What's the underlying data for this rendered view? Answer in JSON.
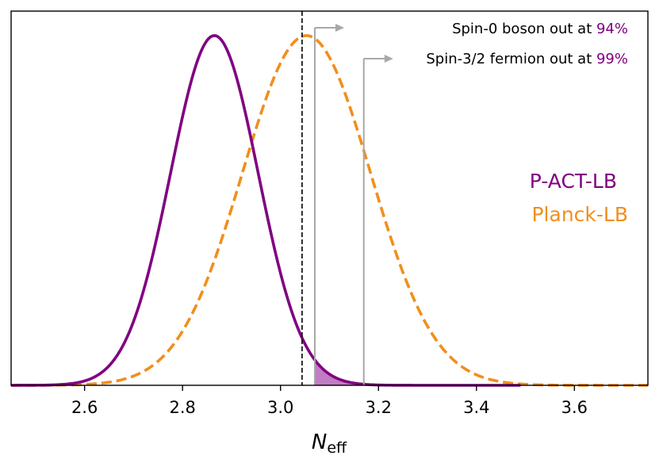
{
  "chart_data": {
    "type": "line",
    "xlabel": {
      "main": "N",
      "sub": "eff"
    },
    "ylabel": "",
    "xlim": [
      2.45,
      3.75
    ],
    "ylim": [
      0,
      1.07
    ],
    "x_ticks": [
      2.6,
      2.8,
      3.0,
      3.2,
      3.4,
      3.6
    ],
    "x_tick_labels": [
      "2.6",
      "2.8",
      "3.0",
      "3.2",
      "3.4",
      "3.6"
    ],
    "series": [
      {
        "name": "P-ACT-LB",
        "color": "#800080",
        "style": "solid",
        "mean": 2.865,
        "sigma": 0.0895,
        "x_min": 2.45,
        "x_max": 3.49
      },
      {
        "name": "Planck-LB",
        "color": "#F28E1C",
        "style": "dashed",
        "mean": 3.053,
        "sigma": 0.131,
        "x_min": 2.45,
        "x_max": 3.75
      }
    ],
    "reference_line": {
      "x": 3.044,
      "style": "dashed",
      "color": "#000000"
    },
    "shaded_regions": [
      {
        "from": 3.07,
        "to": 3.17,
        "color": "#C17DC4"
      },
      {
        "from": 3.17,
        "to": 3.49,
        "color": "#8B168C"
      }
    ],
    "thresholds": [
      {
        "x": 3.07,
        "prefix": "Spin-0 boson out at ",
        "value": "94%",
        "label_color": "#800080",
        "arrow_to": 3.13
      },
      {
        "x": 3.17,
        "prefix": "Spin-3/2 fermion out at ",
        "value": "99%",
        "label_color": "#800080",
        "arrow_to": 3.23
      }
    ],
    "legend": {
      "placement": "right",
      "entries": [
        {
          "label": "P-ACT-LB",
          "color": "#800080"
        },
        {
          "label": "Planck-LB",
          "color": "#F28E1C"
        }
      ]
    },
    "colors": {
      "threshold_line": "#A8A8A8",
      "axis": "#000000"
    }
  }
}
